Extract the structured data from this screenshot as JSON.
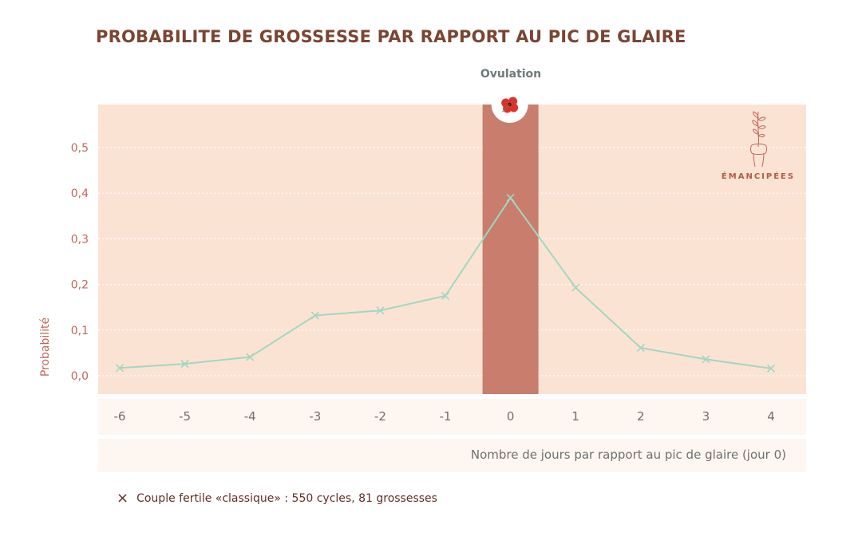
{
  "title": "PROBABILITE DE GROSSESSE PAR RAPPORT AU PIC DE GLAIRE",
  "ovulation_label": "Ovulation",
  "brand": {
    "name": "ÉMANCIPÉES",
    "icon": "hand-holding-plant-icon"
  },
  "ovulation_icon": "poppy-flower-icon",
  "legend": {
    "marker": "×",
    "text": "Couple fertile «classique» : 550 cycles, 81 grossesses"
  },
  "colors": {
    "plot_bg": "#fbe3d4",
    "ovulation_band": "#c87d6d",
    "line": "#a3d6c2",
    "axis_text": "#c0685a",
    "title": "#7b4534"
  },
  "chart_data": {
    "type": "line",
    "title": "PROBABILITE DE GROSSESSE PAR RAPPORT AU PIC DE GLAIRE",
    "xlabel": "Nombre de jours par rapport au pic de glaire (jour 0)",
    "ylabel": "Probabilité",
    "x": [
      -6,
      -5,
      -4,
      -3,
      -2,
      -1,
      0,
      1,
      2,
      3,
      4
    ],
    "x_tick_labels": [
      "-6",
      "-5",
      "-4",
      "-3",
      "-2",
      "-1",
      "0",
      "1",
      "2",
      "3",
      "4"
    ],
    "y_ticks": [
      0.0,
      0.1,
      0.2,
      0.3,
      0.4,
      0.5
    ],
    "y_tick_labels": [
      "0,0",
      "0,1",
      "0,2",
      "0,3",
      "0,4",
      "0,5"
    ],
    "ylim": [
      -0.04,
      0.6
    ],
    "grid": "horizontal dotted",
    "highlight_band": {
      "x": 0,
      "label": "Ovulation"
    },
    "series": [
      {
        "name": "Couple fertile «classique» : 550 cycles, 81 grossesses",
        "marker": "x",
        "values": [
          0.017,
          0.026,
          0.041,
          0.132,
          0.143,
          0.175,
          0.39,
          0.193,
          0.061,
          0.036,
          0.016
        ]
      }
    ]
  }
}
